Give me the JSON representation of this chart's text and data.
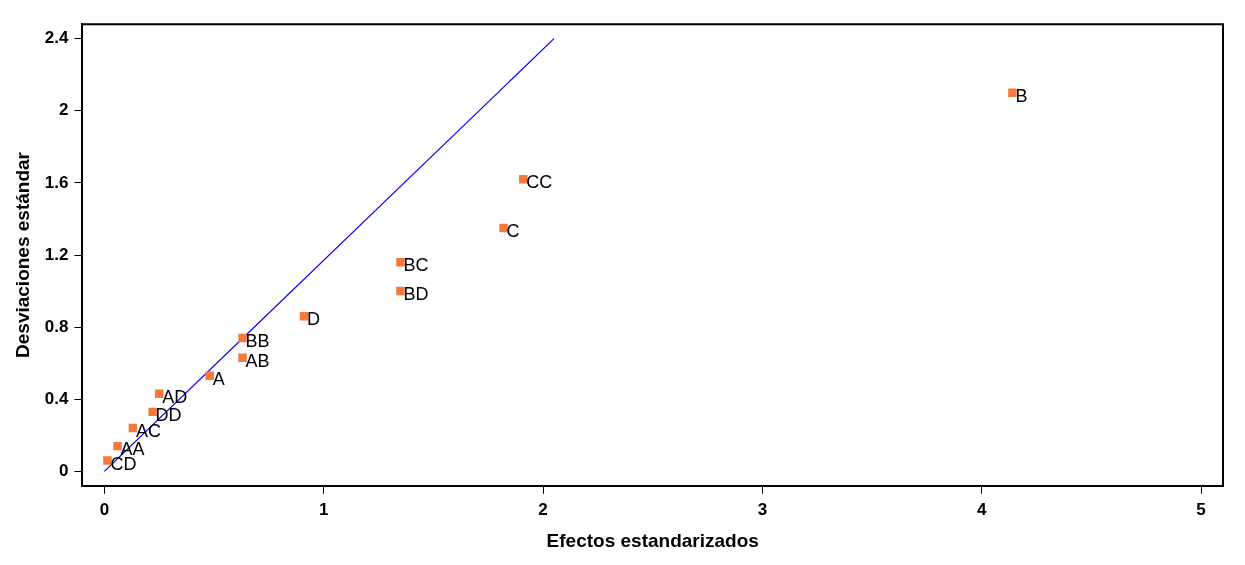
{
  "chart_data": {
    "type": "scatter",
    "xlabel": "Efectos estandarizados",
    "ylabel": "Desviaciones estándar",
    "xlim": [
      -0.1,
      5.1
    ],
    "ylim": [
      -0.08,
      2.48
    ],
    "xticks": [
      0,
      1,
      2,
      3,
      4,
      5
    ],
    "yticks": [
      0,
      0.4,
      0.8,
      1.2,
      1.6,
      2,
      2.4
    ],
    "grid": false,
    "legend": false,
    "marker": "square",
    "series": [
      {
        "color": "#f4793b",
        "x": [
          0.014,
          0.06,
          0.13,
          0.22,
          0.25,
          0.48,
          0.63,
          0.63,
          0.91,
          1.35,
          1.35,
          1.82,
          1.91,
          4.14
        ],
        "values": [
          0.06,
          0.14,
          0.24,
          0.33,
          0.43,
          0.53,
          0.63,
          0.74,
          0.86,
          1.0,
          1.16,
          1.35,
          1.62,
          2.1
        ]
      },
      {
        "type": "line",
        "color": "#0000ff",
        "marker": "none",
        "x": [
          0,
          2.05
        ],
        "values": [
          0,
          2.4
        ]
      }
    ],
    "annotations": [
      {
        "text": "CD",
        "x": 0.014,
        "y": 0.06
      },
      {
        "text": "AA",
        "x": 0.06,
        "y": 0.14
      },
      {
        "text": "AC",
        "x": 0.13,
        "y": 0.24
      },
      {
        "text": "DD",
        "x": 0.22,
        "y": 0.33
      },
      {
        "text": "AD",
        "x": 0.25,
        "y": 0.43
      },
      {
        "text": "A",
        "x": 0.48,
        "y": 0.53
      },
      {
        "text": "AB",
        "x": 0.63,
        "y": 0.63
      },
      {
        "text": "BB",
        "x": 0.63,
        "y": 0.74
      },
      {
        "text": "D",
        "x": 0.91,
        "y": 0.86
      },
      {
        "text": "BD",
        "x": 1.35,
        "y": 1.0
      },
      {
        "text": "BC",
        "x": 1.35,
        "y": 1.16
      },
      {
        "text": "C",
        "x": 1.82,
        "y": 1.35
      },
      {
        "text": "CC",
        "x": 1.91,
        "y": 1.62
      },
      {
        "text": "B",
        "x": 4.14,
        "y": 2.1
      }
    ]
  }
}
